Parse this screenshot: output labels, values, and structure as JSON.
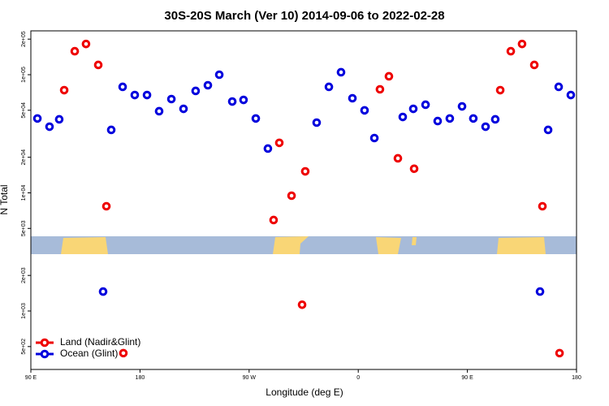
{
  "chart_data": {
    "type": "scatter",
    "title": "30S-20S March (Ver 10)   2014-09-06 to 2022-02-28",
    "xlabel": "Longitude (deg E)",
    "ylabel": "N Total",
    "ylog": true,
    "legend": "bottom-left",
    "xlim": [
      90,
      540
    ],
    "ylim": [
      320,
      235000
    ],
    "xticks": [
      {
        "value": 90,
        "label": "90 E"
      },
      180,
      {
        "value": 270,
        "label": "90 W"
      },
      {
        "value": 360,
        "label": "0"
      },
      {
        "value": 450,
        "label": "90 E"
      },
      {
        "value": 540,
        "label": "180"
      }
    ],
    "yticks": [
      {
        "value": 500,
        "label": "5e+02"
      },
      {
        "value": 1000,
        "label": "1e+03"
      },
      {
        "value": 2000,
        "label": "2e+03"
      },
      {
        "value": 5000,
        "label": "5e+03"
      },
      {
        "value": 10000,
        "label": "1e+04"
      },
      {
        "value": 20000,
        "label": "2e+04"
      },
      {
        "value": 50000,
        "label": "5e+04"
      },
      {
        "value": 100000,
        "label": "1e+05"
      },
      {
        "value": 200000,
        "label": "2e+05"
      }
    ],
    "series": [
      {
        "name": "Land (Nadir&Glint)",
        "color": "#ee0000",
        "x": [
          117.5,
          126.2,
          135.5,
          145.6,
          152.3,
          166.3,
          290.2,
          294.9,
          305.0,
          313.7,
          316.3,
          377.9,
          385.3,
          392.7,
          406.1,
          477.1,
          485.8,
          495.1,
          505.2,
          511.9,
          526.0
        ],
        "values": [
          74000,
          158000,
          182000,
          121000,
          7700,
          440,
          5890,
          26500,
          9460,
          1130,
          15200,
          75200,
          96900,
          19600,
          16000,
          74000,
          158000,
          182000,
          121000,
          7700,
          440
        ]
      },
      {
        "name": "Ocean (Glint)",
        "color": "#0000dd",
        "x": [
          95.4,
          105.4,
          113.4,
          149.6,
          156.3,
          165.7,
          175.7,
          185.8,
          195.8,
          205.9,
          215.9,
          225.9,
          236.0,
          245.4,
          256.1,
          265.4,
          275.5,
          285.5,
          325.7,
          335.8,
          345.8,
          355.2,
          365.2,
          373.3,
          396.7,
          405.4,
          415.5,
          425.5,
          435.5,
          445.6,
          454.9,
          465.0,
          473.0,
          509.9,
          516.6,
          525.3,
          535.3
        ],
        "values": [
          42600,
          36300,
          41900,
          1460,
          34100,
          78900,
          67300,
          67300,
          49100,
          62200,
          51400,
          72900,
          81400,
          100000,
          59300,
          61200,
          42600,
          23700,
          39300,
          78900,
          104900,
          63200,
          49900,
          29100,
          43900,
          51400,
          55700,
          40500,
          42600,
          53900,
          42600,
          36300,
          41900,
          1460,
          34100,
          78900,
          67300
        ]
      }
    ]
  }
}
